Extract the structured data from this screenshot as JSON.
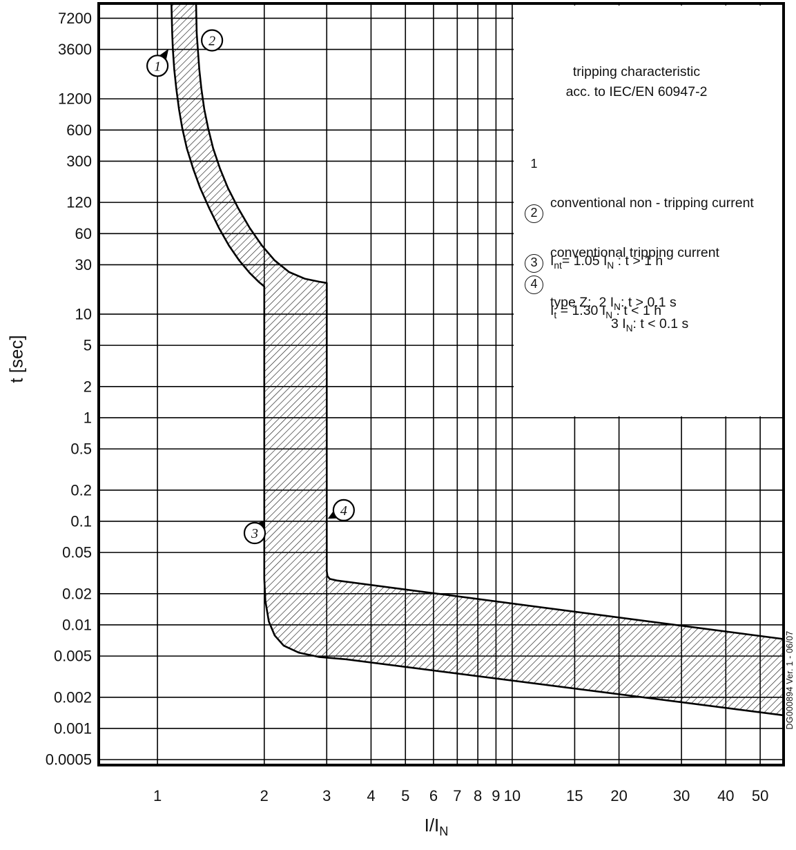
{
  "side_note": "DG000894 Ver. 1 - 06/07",
  "legend": {
    "title_line1": "tripping characteristic",
    "title_line2": "acc. to IEC/EN 60947-2",
    "items": [
      {
        "num": "1",
        "circled": false,
        "line1": "conventional non - tripping current",
        "line2": "I_{nt}= 1.05 I_{N} : t > 1 h"
      },
      {
        "num": "2",
        "circled": true,
        "line1": "conventional tripping current",
        "line2": "I_{t} = 1.30 I_{N} : t < 1 h"
      },
      {
        "num": "3",
        "circled": true,
        "line1": "type Z:  2 I_{N}: t > 0.1 s",
        "line2": ""
      },
      {
        "num": "4",
        "circled": true,
        "line1": "3 I_{N}: t < 0.1 s",
        "line2": ""
      }
    ]
  },
  "chart_data": {
    "type": "area",
    "title": "tripping characteristic acc. to IEC/EN 60947-2",
    "xlabel": "I/I_{N}",
    "ylabel": "t [sec]",
    "x_scale": "log",
    "y_scale": "log",
    "xlim": [
      0.683,
      58.2
    ],
    "ylim": [
      0.000443,
      10000
    ],
    "grid": true,
    "x_ticks": [
      "1",
      "2",
      "3",
      "4",
      "5",
      "6",
      "7",
      "8",
      "9",
      "10",
      "15",
      "20",
      "30",
      "40",
      "50"
    ],
    "y_ticks": [
      "7200",
      "3600",
      "1200",
      "600",
      "300",
      "120",
      "60",
      "30",
      "10",
      "5",
      "2",
      "1",
      "0.5",
      "0.2",
      "0.1",
      "0.05",
      "0.02",
      "0.01",
      "0.005",
      "0.002",
      "0.001",
      "0.0005"
    ],
    "legend_box": {
      "x_from": 10,
      "y_from": 1,
      "position": "top-right"
    },
    "colors": {
      "ink": "#111111",
      "background": "#ffffff"
    },
    "band": {
      "description": "hatched tripping band (type Z) between minimum and maximum tripping curves, I in multiples of IN, t in seconds",
      "lower_bound": [
        [
          1.095,
          10000
        ],
        [
          1.1,
          5200
        ],
        [
          1.105,
          3600
        ],
        [
          1.115,
          2300
        ],
        [
          1.13,
          1500
        ],
        [
          1.15,
          950
        ],
        [
          1.175,
          620
        ],
        [
          1.21,
          400
        ],
        [
          1.26,
          255
        ],
        [
          1.32,
          165
        ],
        [
          1.4,
          105
        ],
        [
          1.49,
          68
        ],
        [
          1.59,
          46
        ],
        [
          1.7,
          33
        ],
        [
          1.82,
          25
        ],
        [
          1.93,
          20.5
        ],
        [
          2.0,
          18.5
        ],
        [
          2.0,
          0.028
        ],
        [
          2.015,
          0.017
        ],
        [
          2.06,
          0.0108
        ],
        [
          2.14,
          0.0079
        ],
        [
          2.27,
          0.0063
        ],
        [
          2.5,
          0.0054
        ],
        [
          2.85,
          0.0049
        ],
        [
          3.4,
          0.00465
        ],
        [
          58.2,
          0.00134
        ]
      ],
      "upper_bound": [
        [
          1.285,
          10000
        ],
        [
          1.29,
          5200
        ],
        [
          1.3,
          3600
        ],
        [
          1.312,
          2300
        ],
        [
          1.33,
          1500
        ],
        [
          1.355,
          950
        ],
        [
          1.39,
          620
        ],
        [
          1.435,
          400
        ],
        [
          1.5,
          255
        ],
        [
          1.58,
          165
        ],
        [
          1.69,
          105
        ],
        [
          1.82,
          68
        ],
        [
          1.97,
          46
        ],
        [
          2.14,
          33
        ],
        [
          2.35,
          25.5
        ],
        [
          2.6,
          22
        ],
        [
          2.85,
          20.6
        ],
        [
          3.0,
          20
        ],
        [
          3.0,
          0.033
        ],
        [
          3.015,
          0.0295
        ],
        [
          3.06,
          0.0278
        ],
        [
          3.2,
          0.0268
        ],
        [
          58.2,
          0.0073
        ]
      ]
    },
    "markers": [
      {
        "label": "1",
        "x": 1.0,
        "y": 2500,
        "target": {
          "x": 1.075,
          "y": 3650
        }
      },
      {
        "label": "2",
        "x": 1.425,
        "y": 4400,
        "target": null
      },
      {
        "label": "3",
        "x": 1.88,
        "y": 0.077,
        "target": {
          "x": 2.01,
          "y": 0.102
        }
      },
      {
        "label": "4",
        "x": 3.35,
        "y": 0.128,
        "target": {
          "x": 3.02,
          "y": 0.106
        }
      }
    ],
    "key_points": [
      {
        "id": 1,
        "meaning": "conventional non-tripping current Int = 1.05 IN, t > 1 h",
        "x": 1.05,
        "y": 3600
      },
      {
        "id": 2,
        "meaning": "conventional tripping current It = 1.30 IN, t < 1 h",
        "x": 1.3,
        "y": 3600
      },
      {
        "id": 3,
        "meaning": "type Z: 2 IN, t > 0.1 s",
        "x": 2.0,
        "y": 0.1
      },
      {
        "id": 4,
        "meaning": "type Z: 3 IN, t < 0.1 s",
        "x": 3.0,
        "y": 0.1
      }
    ]
  }
}
